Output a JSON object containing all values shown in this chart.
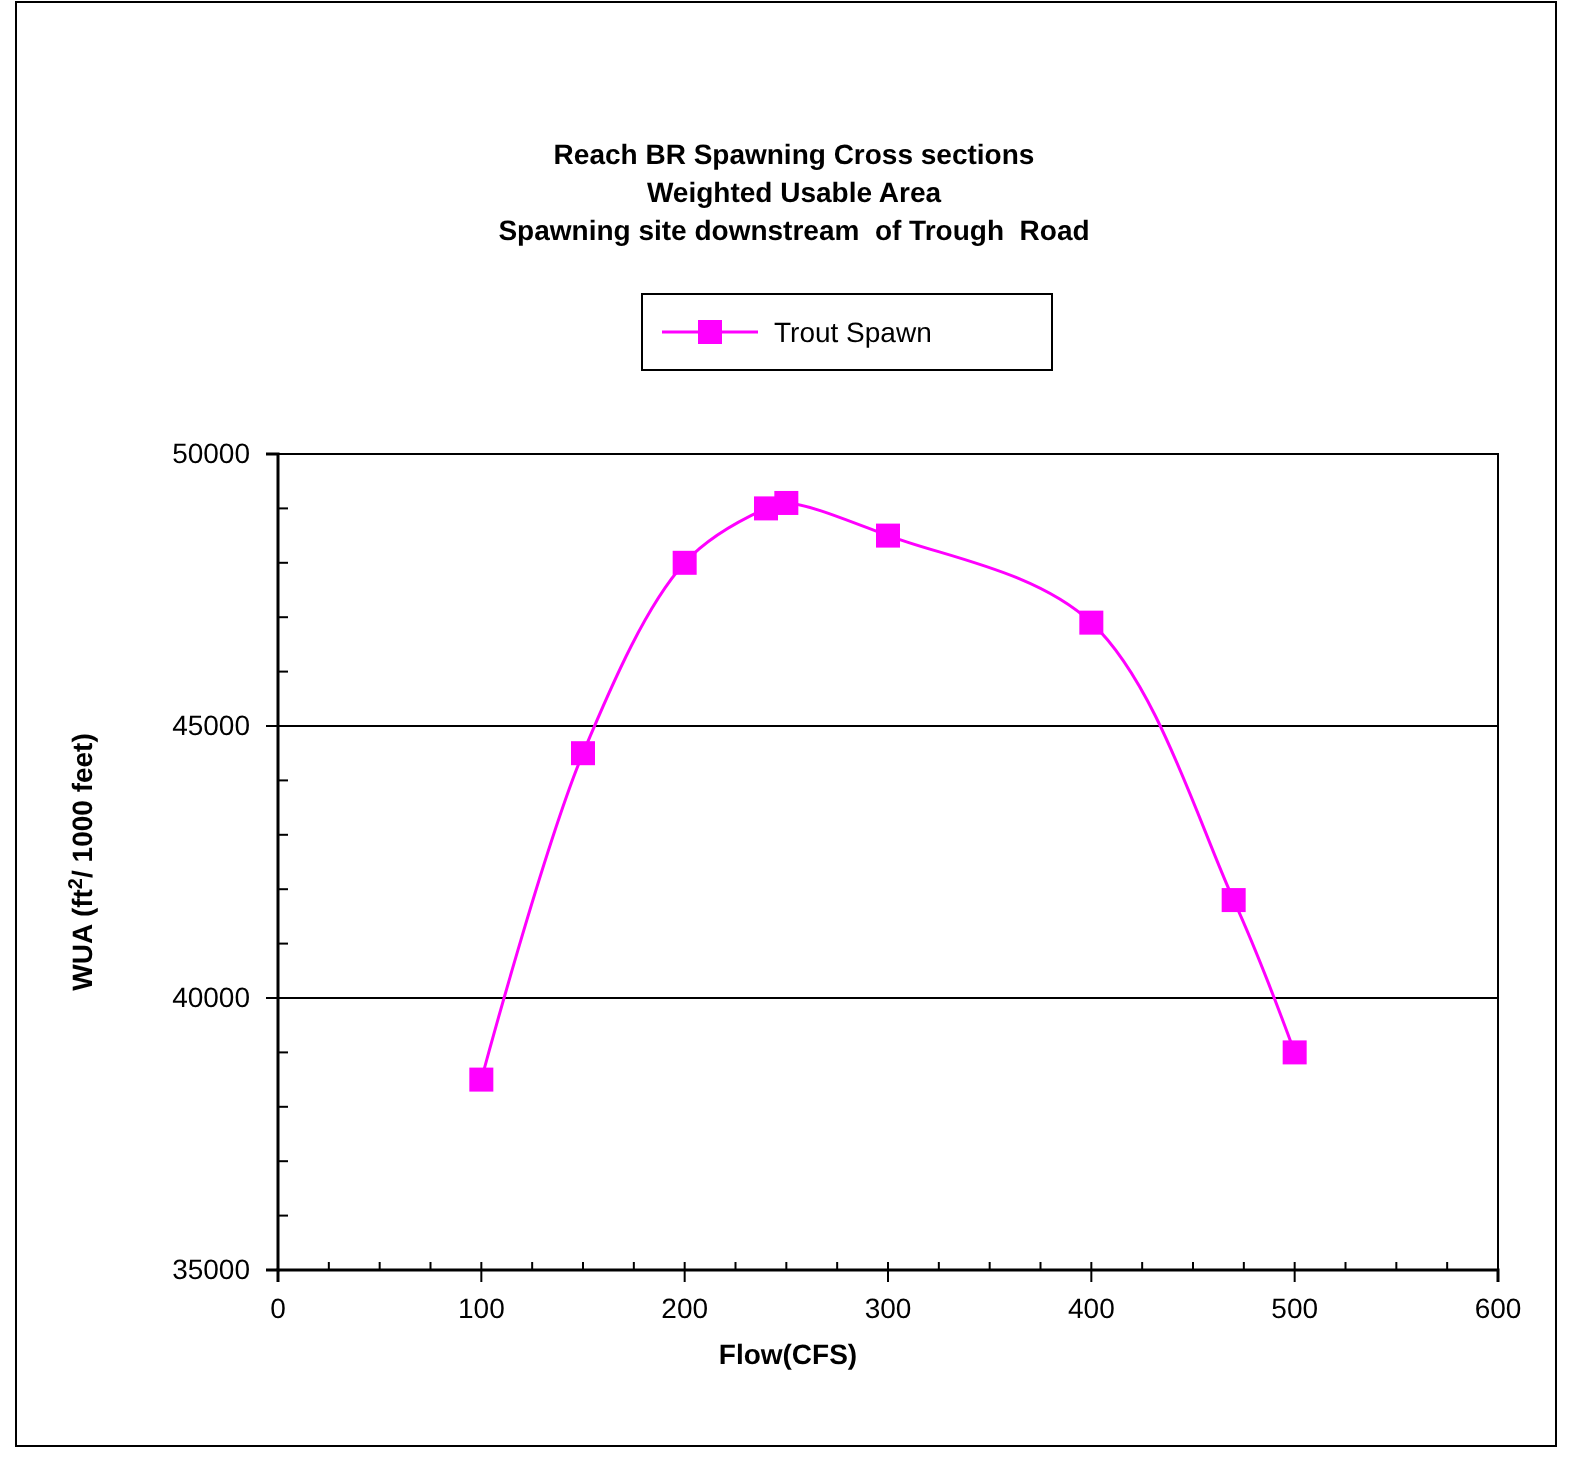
{
  "chart_data": {
    "type": "line",
    "title": "Reach BR Spawning Cross sections\nWeighted Usable Area\nSpawning site downstream  of Trough  Road",
    "xlabel": "Flow(CFS)",
    "ylabel": "WUA (ft$^{2}$/ 1000 feet)",
    "x": [
      100,
      150,
      200,
      240,
      250,
      300,
      400,
      470,
      500
    ],
    "series": [
      {
        "name": "Trout Spawn",
        "color": "#ff00ff",
        "values": [
          38500,
          44500,
          48000,
          49000,
          49100,
          48500,
          46900,
          41800,
          39000
        ]
      }
    ],
    "xlim": [
      0,
      600
    ],
    "xticks": [
      0,
      100,
      200,
      300,
      400,
      500,
      600
    ],
    "ylim": [
      35000,
      50000
    ],
    "yticks": [
      35000,
      40000,
      45000,
      50000
    ],
    "grid": "y",
    "legend": "top",
    "marker": "square",
    "line_style": "solid"
  }
}
